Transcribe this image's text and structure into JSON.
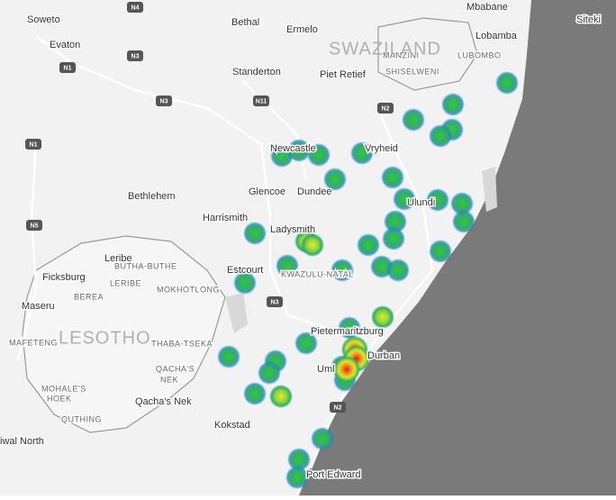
{
  "map": {
    "places": [
      "Soweto",
      "Mbabane",
      "Siteki",
      "Bethal",
      "Ermelo",
      "Evaton",
      "Lobamba",
      "MANZINI",
      "LUBOMBO",
      "SHISELWENI",
      "Standerton",
      "Piet Retief",
      "Newcastle",
      "Vryheid",
      "Bethlehem",
      "Glencoe",
      "Dundee",
      "Ulundi",
      "Harrismith",
      "Ladysmith",
      "Leribe",
      "BUTHA-BUTHE",
      "Ficksburg",
      "BEREA",
      "LERIBE",
      "MOKHOTLONG",
      "Estcourt",
      "KWAZULU-NATAL",
      "Maseru",
      "MAFETENG",
      "THABA-TSEKA",
      "Pietermaritzburg",
      "Durban",
      "QACHA'S",
      "NEK",
      "MOHALE'S",
      "HOEK",
      "Qacha's Nek",
      "QUTHING",
      "Kokstad",
      "Uml",
      "Port Edward",
      "iwal North"
    ],
    "countries": [
      "SWAZILAND",
      "LESOTHO"
    ],
    "road_shields": [
      "N1",
      "N3",
      "N3",
      "N11",
      "N1",
      "N5",
      "N2",
      "N3",
      "N2",
      "N4"
    ]
  }
}
